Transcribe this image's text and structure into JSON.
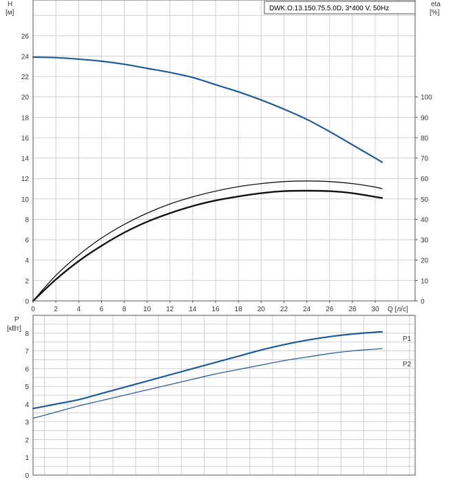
{
  "colors": {
    "head": "#1f5a96",
    "eta_p1": "#111111",
    "eta_p2": "#111111",
    "power_p1": "#1f5a96",
    "power_p2": "#2e5f93",
    "grid": "#cfcfcf",
    "frame": "#555555"
  },
  "chart_data": [
    {
      "type": "line",
      "title": "DWK.O.13.150.75.5.0D, 3*400 V, 50Hz",
      "xlabel": "Q [л/с]",
      "ylabel_left": "H",
      "ylabel_left_unit": "[м]",
      "ylabel_right": "eta",
      "ylabel_right_unit": "[%]",
      "xlim": [
        0,
        33.5
      ],
      "ylim": [
        0,
        29.5
      ],
      "ylim_right": [
        0,
        147.5
      ],
      "x_ticks": [
        "0",
        "2",
        "4",
        "6",
        "8",
        "10",
        "12",
        "14",
        "16",
        "18",
        "20",
        "22",
        "24",
        "26",
        "28",
        "30"
      ],
      "y_ticks": [
        "0",
        "2",
        "4",
        "6",
        "8",
        "10",
        "12",
        "14",
        "16",
        "18",
        "20",
        "22",
        "24",
        "26"
      ],
      "y_right_ticks": [
        "0",
        "10",
        "20",
        "30",
        "40",
        "50",
        "60",
        "70",
        "80",
        "90",
        "100"
      ],
      "grid": true,
      "series": [
        {
          "key": "H",
          "axis": "left",
          "color_key": "head",
          "width": 2.2,
          "x": [
            0,
            2,
            4,
            6,
            8,
            10,
            12,
            14,
            16,
            18,
            20,
            22,
            24,
            26,
            28,
            30,
            30.6
          ],
          "y": [
            23.9,
            23.85,
            23.7,
            23.5,
            23.2,
            22.8,
            22.4,
            21.9,
            21.2,
            20.5,
            19.7,
            18.8,
            17.8,
            16.6,
            15.3,
            14.0,
            13.6
          ]
        },
        {
          "key": "eta1",
          "axis": "right",
          "color_key": "eta_p1",
          "width": 1.3,
          "x": [
            0,
            2,
            4,
            6,
            8,
            10,
            12,
            14,
            16,
            18,
            20,
            22,
            24,
            26,
            28,
            30,
            30.6
          ],
          "y": [
            0,
            12.5,
            22.5,
            30.8,
            37.5,
            43.0,
            47.5,
            51.0,
            53.8,
            56.0,
            57.5,
            58.5,
            58.8,
            58.5,
            57.5,
            55.8,
            55.0
          ]
        },
        {
          "key": "eta2",
          "axis": "right",
          "color_key": "eta_p2",
          "width": 2.4,
          "x": [
            0,
            2,
            4,
            6,
            8,
            10,
            12,
            14,
            16,
            18,
            20,
            22,
            24,
            26,
            28,
            30,
            30.6
          ],
          "y": [
            0,
            10.5,
            19.5,
            27.0,
            33.5,
            38.8,
            43.0,
            46.5,
            49.2,
            51.2,
            52.8,
            53.8,
            54.0,
            53.8,
            52.8,
            51.0,
            50.5
          ]
        }
      ]
    },
    {
      "type": "line",
      "ylabel": "P",
      "ylabel_unit": "[кВт]",
      "xlim": [
        0,
        33.5
      ],
      "ylim": [
        0,
        9
      ],
      "y_ticks": [
        "0",
        "1",
        "2",
        "3",
        "4",
        "5",
        "6",
        "7",
        "8"
      ],
      "grid": true,
      "series": [
        {
          "name": "P1",
          "color_key": "power_p1",
          "width": 2.2,
          "x": [
            0,
            2,
            4,
            6,
            8,
            10,
            12,
            14,
            16,
            18,
            20,
            22,
            24,
            26,
            28,
            30,
            30.6
          ],
          "y": [
            3.75,
            4.0,
            4.25,
            4.6,
            4.95,
            5.3,
            5.65,
            6.0,
            6.35,
            6.7,
            7.05,
            7.35,
            7.6,
            7.8,
            7.95,
            8.05,
            8.07
          ]
        },
        {
          "name": "P2",
          "color_key": "power_p2",
          "width": 1.3,
          "x": [
            0,
            2,
            4,
            6,
            8,
            10,
            12,
            14,
            16,
            18,
            20,
            22,
            24,
            26,
            28,
            30,
            30.6
          ],
          "y": [
            3.2,
            3.55,
            3.9,
            4.2,
            4.5,
            4.8,
            5.1,
            5.4,
            5.7,
            5.95,
            6.2,
            6.45,
            6.65,
            6.85,
            7.0,
            7.1,
            7.13
          ]
        }
      ]
    }
  ]
}
